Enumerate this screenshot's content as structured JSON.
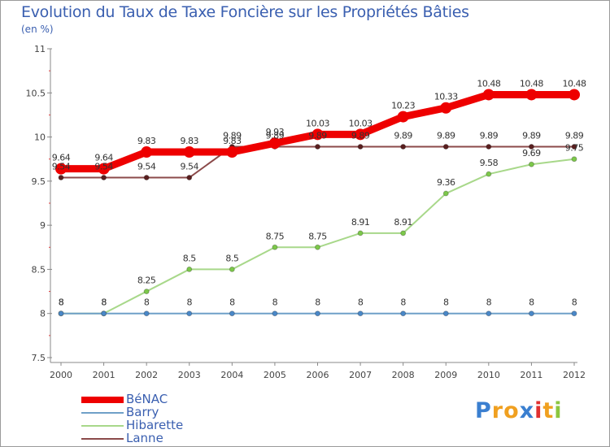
{
  "header": {
    "title": "Evolution du Taux de Taxe Foncière sur les Propriétés Bâties",
    "unit": "(en %)"
  },
  "chart_data": {
    "type": "line",
    "title": "Evolution du Taux de Taxe Foncière sur les Propriétés Bâties",
    "ylabel": "(en %)",
    "xlabel": "",
    "categories": [
      "2000",
      "2001",
      "2002",
      "2003",
      "2004",
      "2005",
      "2006",
      "2007",
      "2008",
      "2009",
      "2010",
      "2011",
      "2012"
    ],
    "ylim": [
      7.5,
      11
    ],
    "yticks": [
      7.5,
      8,
      8.5,
      9,
      9.5,
      10,
      10.5,
      11
    ],
    "ytick_labels": [
      "7.5",
      "8",
      "8.5",
      "9",
      "9.5",
      "10",
      "10.5",
      "11"
    ],
    "grid": false,
    "series": [
      {
        "name": "Lanne",
        "color": "#8b4a4a",
        "marker_color": "#5a1f1f",
        "values": [
          9.54,
          9.54,
          9.54,
          9.54,
          9.89,
          9.89,
          9.89,
          9.89,
          9.89,
          9.89,
          9.89,
          9.89,
          9.89
        ],
        "labels": [
          "9.54",
          "9.54",
          "9.54",
          "9.54",
          "9.89",
          "9.89",
          "9.89",
          "9.89",
          "9.89",
          "9.89",
          "9.89",
          "9.89",
          "9.89"
        ]
      },
      {
        "name": "Hibarette",
        "color": "#a8d88a",
        "marker_color": "#7cc84a",
        "values": [
          8,
          8,
          8.25,
          8.5,
          8.5,
          8.75,
          8.75,
          8.91,
          8.91,
          9.36,
          9.58,
          9.69,
          9.75
        ],
        "labels": [
          "8",
          "8",
          "8.25",
          "8.5",
          "8.5",
          "8.75",
          "8.75",
          "8.91",
          "8.91",
          "9.36",
          "9.58",
          "9.69",
          "9.75"
        ]
      },
      {
        "name": "Barry",
        "color": "#6fa0c8",
        "marker_color": "#4a88c8",
        "values": [
          8,
          8,
          8,
          8,
          8,
          8,
          8,
          8,
          8,
          8,
          8,
          8,
          8
        ],
        "labels": [
          "8",
          "8",
          "8",
          "8",
          "8",
          "8",
          "8",
          "8",
          "8",
          "8",
          "8",
          "8",
          "8"
        ]
      },
      {
        "name": "BéNAC",
        "color": "#ee0000",
        "marker_color": "#ee0000",
        "values": [
          9.64,
          9.64,
          9.83,
          9.83,
          9.83,
          9.93,
          10.03,
          10.03,
          10.23,
          10.33,
          10.48,
          10.48,
          10.48
        ],
        "labels": [
          "9.64",
          "9.64",
          "9.83",
          "9.83",
          "9.83",
          "9.93",
          "10.03",
          "10.03",
          "10.23",
          "10.33",
          "10.48",
          "10.48",
          "10.48"
        ]
      }
    ],
    "legend_order": [
      "BéNAC",
      "Barry",
      "Hibarette",
      "Lanne"
    ],
    "legend_position": "bottom-left"
  },
  "legend": {
    "items": [
      {
        "label": "BéNAC",
        "color": "#ee0000"
      },
      {
        "label": "Barry",
        "color": "#6fa0c8"
      },
      {
        "label": "Hibarette",
        "color": "#a8d88a"
      },
      {
        "label": "Lanne",
        "color": "#8b4a4a"
      }
    ]
  },
  "logo": {
    "letters": [
      "P",
      "r",
      "o",
      "x",
      "i",
      "t",
      "i"
    ],
    "colors": [
      "#3a7fd0",
      "#f0a020",
      "#f0a020",
      "#3a7fd0",
      "#e03030",
      "#f0a020",
      "#8cc63f"
    ]
  }
}
